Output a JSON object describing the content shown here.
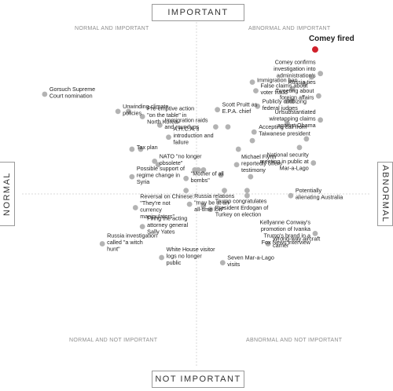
{
  "chart_data": {
    "type": "scatter",
    "title": "",
    "xlabel": "",
    "ylabel": "",
    "axes": {
      "top": "IMPORTANT",
      "bottom": "NOT IMPORTANT",
      "left": "NORMAL",
      "right": "ABNORMAL"
    },
    "quadrants": {
      "top_left": "NORMAL AND IMPORTANT",
      "top_right": "ABNORMAL AND IMPORTANT",
      "bottom_left": "NORMAL AND NOT IMPORTANT",
      "bottom_right": "ABNORMAL AND NOT IMPORTANT"
    },
    "xlim": [
      -1,
      1
    ],
    "ylim": [
      -1,
      1
    ],
    "grid": true,
    "colors": {
      "point": "#b3b3b3",
      "highlight": "#d0202a",
      "axis_line": "#d8d8d8",
      "text": "#222222"
    },
    "points": [
      {
        "x": 0.68,
        "y": 0.84,
        "label": "Comey fired",
        "highlight": true
      },
      {
        "x": 0.71,
        "y": 0.7,
        "label": "Comey confirms investigation into administration's Russia ties"
      },
      {
        "x": 0.66,
        "y": 0.68
      },
      {
        "x": 0.62,
        "y": 0.64
      },
      {
        "x": 0.55,
        "y": 0.61
      },
      {
        "x": 0.32,
        "y": 0.65,
        "label": "Immigration ban"
      },
      {
        "x": 0.34,
        "y": 0.6,
        "label": "False claims about voter fraud"
      },
      {
        "x": 0.7,
        "y": 0.57,
        "label": "Tweeting about foreign affairs"
      },
      {
        "x": 0.55,
        "y": 0.54
      },
      {
        "x": 0.52,
        "y": 0.54
      },
      {
        "x": 0.35,
        "y": 0.51,
        "label": "Publicly criticizing federal judges"
      },
      {
        "x": 0.71,
        "y": 0.43,
        "label": "Unsubstantiated wiretapping claims against Obama"
      },
      {
        "x": 0.52,
        "y": 0.41
      },
      {
        "x": 0.63,
        "y": 0.32
      },
      {
        "x": 0.59,
        "y": 0.27
      },
      {
        "x": 0.33,
        "y": 0.36,
        "label": "Accepting call from Taiwanese president"
      },
      {
        "x": 0.32,
        "y": 0.31
      },
      {
        "x": 0.24,
        "y": 0.26
      },
      {
        "x": 0.18,
        "y": 0.39
      },
      {
        "x": 0.12,
        "y": 0.49,
        "label": "Scott Pruitt as E.P.A. chief"
      },
      {
        "x": 0.11,
        "y": 0.39
      },
      {
        "x": 0.23,
        "y": 0.17,
        "label": "Michael Flynn reportedly offers testimony"
      },
      {
        "x": 0.67,
        "y": 0.18,
        "label": "National security meeting in public at Mar-a-Lago"
      },
      {
        "x": 0.31,
        "y": 0.1
      },
      {
        "x": 0.14,
        "y": 0.11
      },
      {
        "x": 0.04,
        "y": 0.14
      },
      {
        "x": 0.01,
        "y": 0.14
      },
      {
        "x": 0.16,
        "y": 0.02
      },
      {
        "x": 0.29,
        "y": 0.02
      },
      {
        "x": 0.29,
        "y": -0.01
      },
      {
        "x": 0.54,
        "y": -0.01,
        "label": "Potentially alienating Australia"
      },
      {
        "x": 0.08,
        "y": -0.09,
        "label": "Trump congratulates President Erdogan of Turkey on election"
      },
      {
        "x": 0.04,
        "y": -0.07
      },
      {
        "x": -0.21,
        "y": 0.4,
        "label": "Immigration raids and roundups"
      },
      {
        "x": -0.45,
        "y": 0.48,
        "label": "Unwinding climate policies"
      },
      {
        "x": -0.39,
        "y": 0.48
      },
      {
        "x": -0.31,
        "y": 0.45,
        "label": "Pre-emptive action \"on the table\" in North Korea"
      },
      {
        "x": -0.16,
        "y": 0.33,
        "label": "A.H.C.A.'s introduction and failure"
      },
      {
        "x": -0.37,
        "y": 0.26,
        "label": "Tax plan"
      },
      {
        "x": -0.32,
        "y": 0.26
      },
      {
        "x": -0.24,
        "y": 0.19,
        "label": "NATO \"no longer obsolete\""
      },
      {
        "x": -0.22,
        "y": 0.17
      },
      {
        "x": -0.01,
        "y": 0.14
      },
      {
        "x": -0.37,
        "y": 0.1,
        "label": "Possible support of regime change in Syria"
      },
      {
        "x": -0.06,
        "y": 0.09,
        "label": "\"Mother of all bombs\""
      },
      {
        "x": -0.06,
        "y": 0.02
      },
      {
        "x": -0.04,
        "y": -0.06,
        "label": "Russia relations \"may be at an all-time low\""
      },
      {
        "x": -0.35,
        "y": -0.08,
        "label": "Reversal on Chinese: \"They're not currency manipulators\""
      },
      {
        "x": -0.31,
        "y": -0.19,
        "label": "Firing the acting attorney general Sally Yates"
      },
      {
        "x": -0.54,
        "y": -0.29,
        "label": "Russia investigation called \"a witch hunt\""
      },
      {
        "x": -0.2,
        "y": -0.37,
        "label": "White House visitor logs no longer public"
      },
      {
        "x": -0.87,
        "y": 0.58,
        "label": "Gorsuch Supreme Court nomination"
      },
      {
        "x": 0.15,
        "y": -0.4,
        "label": "Seven Mar-a-Lago visits"
      },
      {
        "x": 0.41,
        "y": -0.29,
        "label": "Wrong-way aircraft carrier"
      },
      {
        "x": 0.68,
        "y": -0.23,
        "label": "Kellyanne Conway's promotion of Ivanka Trump's brand in a Fox News interview"
      }
    ]
  }
}
